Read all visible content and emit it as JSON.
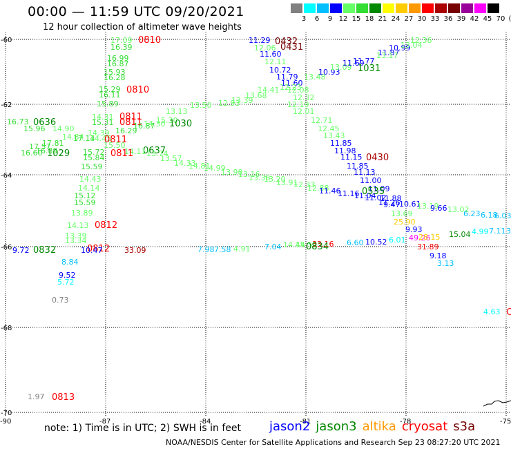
{
  "title": "00:00 — 11:59 UTC 09/20/2021",
  "subtitle": "12 hour collection of altimeter wave heights",
  "colorbar": {
    "labels": [
      "3",
      "6",
      "9",
      "12",
      "15",
      "18",
      "21",
      "24",
      "27",
      "30",
      "33",
      "36",
      "39",
      "42",
      "45",
      "70",
      "(ft)"
    ],
    "colors": [
      "#808080",
      "#00ffff",
      "#00bfff",
      "#0000ff",
      "#66ff66",
      "#33dd33",
      "#008800",
      "#ffff00",
      "#ffcc00",
      "#ff9900",
      "#ff0000",
      "#aa0000",
      "#770000",
      "#990099",
      "#ff00ff",
      "#000000"
    ]
  },
  "map": {
    "lat_labels": [
      "-60",
      "-62",
      "-64",
      "-66",
      "-68",
      "-70"
    ],
    "lon_labels": [
      "-90",
      "-87",
      "-84",
      "-81",
      "-78",
      "-75"
    ],
    "observations": [
      {
        "t": "17.09",
        "c": "#66ff66"
      },
      {
        "t": "16.39",
        "c": "#33dd33"
      },
      {
        "t": "0810",
        "c": "#ff0000"
      },
      {
        "t": "16.99",
        "c": "#33dd33"
      },
      {
        "t": "16.87",
        "c": "#33dd33"
      },
      {
        "t": "15.93",
        "c": "#33dd33"
      },
      {
        "t": "16.28",
        "c": "#33dd33"
      },
      {
        "t": "15.29",
        "c": "#33dd33"
      },
      {
        "t": "16.11",
        "c": "#33dd33"
      },
      {
        "t": "0810",
        "c": "#ff0000"
      },
      {
        "t": "15.89",
        "c": "#33dd33"
      },
      {
        "t": "16.73",
        "c": "#33dd33"
      },
      {
        "t": "0636",
        "c": "#008800"
      },
      {
        "t": "15.96",
        "c": "#33dd33"
      },
      {
        "t": "14.90",
        "c": "#66ff66"
      },
      {
        "t": "14.84",
        "c": "#66ff66"
      },
      {
        "t": "17.81",
        "c": "#33dd33"
      },
      {
        "t": "17.14",
        "c": "#33dd33"
      },
      {
        "t": "14.45",
        "c": "#66ff66"
      },
      {
        "t": "16.60",
        "c": "#33dd33"
      },
      {
        "t": "1029",
        "c": "#008800"
      },
      {
        "t": "17.57",
        "c": "#33dd33"
      },
      {
        "t": "16.89",
        "c": "#33dd33"
      },
      {
        "t": "14.31",
        "c": "#66ff66"
      },
      {
        "t": "15.31",
        "c": "#33dd33"
      },
      {
        "t": "0811",
        "c": "#ff0000"
      },
      {
        "t": "0811",
        "c": "#ff0000"
      },
      {
        "t": "16.87",
        "c": "#33dd33"
      },
      {
        "t": "16.29",
        "c": "#33dd33"
      },
      {
        "t": "14.30",
        "c": "#66ff66"
      },
      {
        "t": "15.30",
        "c": "#66ff66"
      },
      {
        "t": "1030",
        "c": "#008800"
      },
      {
        "t": "13.13",
        "c": "#66ff66"
      },
      {
        "t": "13.50",
        "c": "#66ff66"
      },
      {
        "t": "14.39",
        "c": "#66ff66"
      },
      {
        "t": "15.50",
        "c": "#66ff66"
      },
      {
        "t": "0811",
        "c": "#ff0000"
      },
      {
        "t": "0637",
        "c": "#008800"
      },
      {
        "t": "15.72",
        "c": "#33dd33"
      },
      {
        "t": "15.84",
        "c": "#33dd33"
      },
      {
        "t": "15.59",
        "c": "#33dd33"
      },
      {
        "t": "14.11",
        "c": "#66ff66"
      },
      {
        "t": "0811",
        "c": "#ff0000"
      },
      {
        "t": "13.74",
        "c": "#66ff66"
      },
      {
        "t": "13.57",
        "c": "#66ff66"
      },
      {
        "t": "14.33",
        "c": "#66ff66"
      },
      {
        "t": "14.81",
        "c": "#66ff66"
      },
      {
        "t": "14.99",
        "c": "#66ff66"
      },
      {
        "t": "13.90",
        "c": "#66ff66"
      },
      {
        "t": "13.16",
        "c": "#66ff66"
      },
      {
        "t": "13.36",
        "c": "#66ff66"
      },
      {
        "t": "13.20",
        "c": "#66ff66"
      },
      {
        "t": "13.91",
        "c": "#66ff66"
      },
      {
        "t": "12.33",
        "c": "#66ff66"
      },
      {
        "t": "12.88",
        "c": "#66ff66"
      },
      {
        "t": "14.43",
        "c": "#66ff66"
      },
      {
        "t": "14.14",
        "c": "#66ff66"
      },
      {
        "t": "15.12",
        "c": "#33dd33"
      },
      {
        "t": "15.59",
        "c": "#33dd33"
      },
      {
        "t": "13.89",
        "c": "#66ff66"
      },
      {
        "t": "14.13",
        "c": "#66ff66"
      },
      {
        "t": "0812",
        "c": "#ff0000"
      },
      {
        "t": "13.39",
        "c": "#66ff66"
      },
      {
        "t": "13.34",
        "c": "#66ff66"
      },
      {
        "t": "9.72",
        "c": "#0000ff"
      },
      {
        "t": "0832",
        "c": "#008800"
      },
      {
        "t": "0812",
        "c": "#ff0000"
      },
      {
        "t": "10.47",
        "c": "#0000ff"
      },
      {
        "t": "33.09",
        "c": "#aa0000"
      },
      {
        "t": "8.84",
        "c": "#00bfff"
      },
      {
        "t": "9.52",
        "c": "#0000ff"
      },
      {
        "t": "5.72",
        "c": "#00ffff"
      },
      {
        "t": "0.73",
        "c": "#808080"
      },
      {
        "t": "1.97",
        "c": "#808080"
      },
      {
        "t": "0813",
        "c": "#ff0000"
      },
      {
        "t": "11.29",
        "c": "#0000ff"
      },
      {
        "t": "0432",
        "c": "#770000"
      },
      {
        "t": "12.06",
        "c": "#66ff66"
      },
      {
        "t": "0431",
        "c": "#770000"
      },
      {
        "t": "11.60",
        "c": "#0000ff"
      },
      {
        "t": "12.11",
        "c": "#66ff66"
      },
      {
        "t": "10.72",
        "c": "#0000ff"
      },
      {
        "t": "11.79",
        "c": "#0000ff"
      },
      {
        "t": "11.60",
        "c": "#0000ff"
      },
      {
        "t": "13.48",
        "c": "#66ff66"
      },
      {
        "t": "10.93",
        "c": "#0000ff"
      },
      {
        "t": "13.09",
        "c": "#66ff66"
      },
      {
        "t": "11.69",
        "c": "#0000ff"
      },
      {
        "t": "11.77",
        "c": "#0000ff"
      },
      {
        "t": "1031",
        "c": "#008800"
      },
      {
        "t": "11.87",
        "c": "#0000ff"
      },
      {
        "t": "10.99",
        "c": "#0000ff"
      },
      {
        "t": "13.17",
        "c": "#66ff66"
      },
      {
        "t": "13.04",
        "c": "#66ff66"
      },
      {
        "t": "12.36",
        "c": "#66ff66"
      },
      {
        "t": "14.41",
        "c": "#66ff66"
      },
      {
        "t": "13.68",
        "c": "#66ff66"
      },
      {
        "t": "13.39",
        "c": "#66ff66"
      },
      {
        "t": "12.93",
        "c": "#66ff66"
      },
      {
        "t": "12.23",
        "c": "#66ff66"
      },
      {
        "t": "12.08",
        "c": "#66ff66"
      },
      {
        "t": "12.32",
        "c": "#66ff66"
      },
      {
        "t": "12.19",
        "c": "#66ff66"
      },
      {
        "t": "12.01",
        "c": "#66ff66"
      },
      {
        "t": "12.71",
        "c": "#66ff66"
      },
      {
        "t": "12.45",
        "c": "#66ff66"
      },
      {
        "t": "13.43",
        "c": "#66ff66"
      },
      {
        "t": "11.85",
        "c": "#0000ff"
      },
      {
        "t": "11.98",
        "c": "#0000ff"
      },
      {
        "t": "11.15",
        "c": "#0000ff"
      },
      {
        "t": "0430",
        "c": "#aa0000"
      },
      {
        "t": "11.85",
        "c": "#0000ff"
      },
      {
        "t": "11.13",
        "c": "#0000ff"
      },
      {
        "t": "11.00",
        "c": "#0000ff"
      },
      {
        "t": "11.09",
        "c": "#0000ff"
      },
      {
        "t": "11.46",
        "c": "#0000ff"
      },
      {
        "t": "11.16",
        "c": "#0000ff"
      },
      {
        "t": "11.04",
        "c": "#0000ff"
      },
      {
        "t": "0535",
        "c": "#008800"
      },
      {
        "t": "11.02",
        "c": "#0000ff"
      },
      {
        "t": "11.88",
        "c": "#0000ff"
      },
      {
        "t": "11.26",
        "c": "#0000ff"
      },
      {
        "t": "9.47",
        "c": "#0000ff"
      },
      {
        "t": "10.61",
        "c": "#0000ff"
      },
      {
        "t": "13.19",
        "c": "#66ff66"
      },
      {
        "t": "9.66",
        "c": "#0000ff"
      },
      {
        "t": "13.02",
        "c": "#66ff66"
      },
      {
        "t": "6.23",
        "c": "#00bfff"
      },
      {
        "t": "6.18",
        "c": "#00bfff"
      },
      {
        "t": "6.03",
        "c": "#00bfff"
      },
      {
        "t": "13.69",
        "c": "#66ff66"
      },
      {
        "t": "25.90",
        "c": "#ffcc00"
      },
      {
        "t": "9.93",
        "c": "#0000ff"
      },
      {
        "t": "15.04",
        "c": "#008800"
      },
      {
        "t": "4.99",
        "c": "#00ffff"
      },
      {
        "t": "7.11",
        "c": "#00bfff"
      },
      {
        "t": "3",
        "c": "#00bfff"
      },
      {
        "t": "49.26",
        "c": "#ff00ff"
      },
      {
        "t": "28.15",
        "c": "#ffcc00"
      },
      {
        "t": "31.89",
        "c": "#ff0000"
      },
      {
        "t": "9.18",
        "c": "#0000ff"
      },
      {
        "t": "3.13",
        "c": "#00bfff"
      },
      {
        "t": "6.01",
        "c": "#00ffff"
      },
      {
        "t": "10.52",
        "c": "#0000ff"
      },
      {
        "t": "6.60",
        "c": "#00bfff"
      },
      {
        "t": "7.04",
        "c": "#00bfff"
      },
      {
        "t": "14.45",
        "c": "#66ff66"
      },
      {
        "t": "14.52",
        "c": "#66ff66"
      },
      {
        "t": "33.16",
        "c": "#ff0000"
      },
      {
        "t": "0834",
        "c": "#008800"
      },
      {
        "t": "7.98",
        "c": "#00bfff"
      },
      {
        "t": "7.58",
        "c": "#00bfff"
      },
      {
        "t": "4.91",
        "c": "#66ff66"
      },
      {
        "t": "4.63",
        "c": "#00ffff"
      },
      {
        "t": "C",
        "c": "#ff0000"
      }
    ]
  },
  "note": "note: 1) Time is in UTC; 2) SWH is in feet",
  "legend": [
    {
      "label": "jason2",
      "color": "#0000ff"
    },
    {
      "label": "jason3",
      "color": "#008800"
    },
    {
      "label": "altika",
      "color": "#ff9900"
    },
    {
      "label": "cryosat",
      "color": "#ff0000"
    },
    {
      "label": "s3a",
      "color": "#770000"
    }
  ],
  "credit": "NOAA/NESDIS Center for Satellite Applications and Research    Sep 23 08:27:20 UTC 2021"
}
